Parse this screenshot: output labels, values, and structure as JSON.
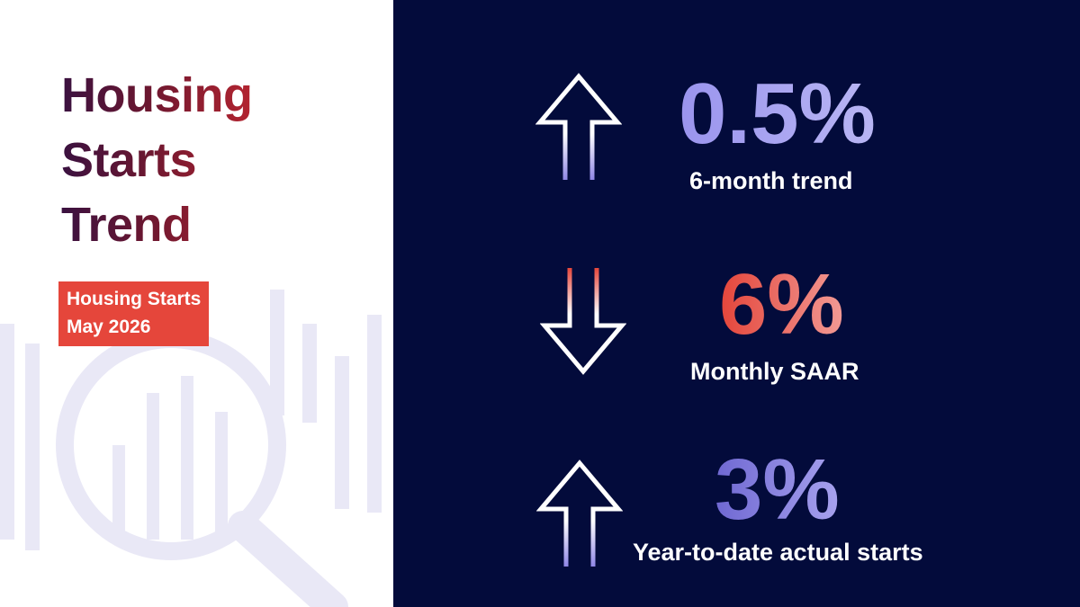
{
  "title": {
    "lines": [
      "Housing",
      "Starts",
      "Trend"
    ]
  },
  "tag": {
    "line1": "Housing Starts",
    "line2": "May 2026"
  },
  "decoration": {
    "icon": "magnifier-bar-chart-icon",
    "color": "#e9e8f6"
  },
  "colors": {
    "panel": "#030b3b",
    "accent_red": "#e5463b",
    "accent_blue": "#9a94ee"
  },
  "metrics": [
    {
      "value": "0.5%",
      "label": "6-month trend",
      "direction": "up",
      "icon": "arrow-up-icon"
    },
    {
      "value": "6%",
      "label": "Monthly SAAR",
      "direction": "down",
      "icon": "arrow-down-icon"
    },
    {
      "value": "3%",
      "label": "Year-to-date actual starts",
      "direction": "up",
      "icon": "arrow-up-icon"
    }
  ]
}
